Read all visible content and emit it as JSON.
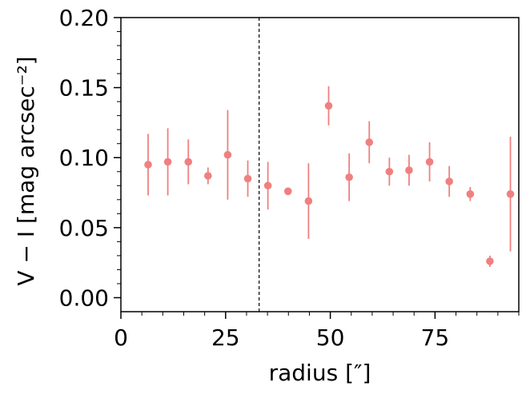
{
  "chart_data": {
    "type": "scatter",
    "title": "",
    "xlabel": "radius [″]",
    "ylabel": "V − I [mag arcsec⁻²]",
    "xlim": [
      0,
      95
    ],
    "ylim": [
      -0.01,
      0.2
    ],
    "xticks": [
      0,
      25,
      50,
      75
    ],
    "xtick_labels": [
      "0",
      "25",
      "50",
      "75"
    ],
    "yticks": [
      0.0,
      0.05,
      0.1,
      0.15,
      0.2
    ],
    "ytick_labels": [
      "0.00",
      "0.05",
      "0.10",
      "0.15",
      "0.20"
    ],
    "grid": false,
    "legend": "none",
    "marker_color": "#f08080",
    "vline": {
      "x": 33,
      "style": "dashed",
      "color": "#000000"
    },
    "series": [
      {
        "x": [
          6.5,
          11.2,
          16.1,
          20.8,
          25.5,
          30.3,
          35.1,
          39.9,
          44.8,
          49.6,
          54.5,
          59.3,
          64.1,
          68.8,
          73.7,
          78.4,
          83.4,
          88.1,
          93.0
        ],
        "y": [
          0.095,
          0.097,
          0.097,
          0.087,
          0.102,
          0.085,
          0.08,
          0.076,
          0.069,
          0.137,
          0.086,
          0.111,
          0.09,
          0.091,
          0.097,
          0.083,
          0.074,
          0.026,
          0.074
        ],
        "yerr": [
          0.022,
          0.024,
          0.016,
          0.006,
          0.032,
          0.013,
          0.017,
          0.002,
          0.027,
          0.014,
          0.017,
          0.015,
          0.01,
          0.011,
          0.014,
          0.011,
          0.005,
          0.004,
          0.041
        ]
      }
    ]
  }
}
